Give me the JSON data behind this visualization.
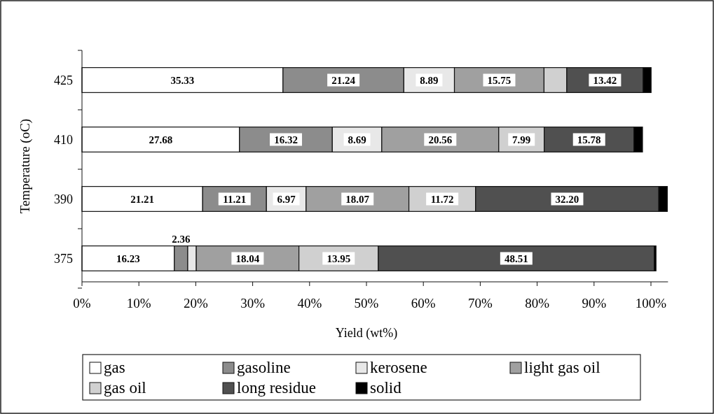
{
  "chart_data": {
    "type": "bar",
    "orientation": "horizontal",
    "stacked": true,
    "xlabel": "Yield (wt%)",
    "ylabel": "Temperature (oC)",
    "categories": [
      "425",
      "410",
      "390",
      "375"
    ],
    "series": [
      {
        "name": "gas",
        "color": "#ffffff",
        "values": [
          35.33,
          27.68,
          21.21,
          16.23
        ],
        "value_labels": [
          "35.33",
          "27.68",
          "21.21",
          "16.23"
        ]
      },
      {
        "name": "gasoline",
        "color": "#8c8c8c",
        "values": [
          21.24,
          16.32,
          11.21,
          2.36
        ],
        "value_labels": [
          "21.24",
          "16.32",
          "11.21",
          "2.36"
        ]
      },
      {
        "name": "kerosene",
        "color": "#e8e8e8",
        "values": [
          8.89,
          8.69,
          6.97,
          1.5
        ],
        "value_labels": [
          "8.89",
          "8.69",
          "6.97",
          null
        ]
      },
      {
        "name": "light gas oil",
        "color": "#a0a0a0",
        "values": [
          15.75,
          20.56,
          18.07,
          18.04
        ],
        "value_labels": [
          "15.75",
          "20.56",
          "18.07",
          "18.04"
        ]
      },
      {
        "name": "gas oil",
        "color": "#d0d0d0",
        "values": [
          4.0,
          7.99,
          11.72,
          13.95
        ],
        "value_labels": [
          null,
          "7.99",
          "11.72",
          "13.95"
        ]
      },
      {
        "name": "long residue",
        "color": "#505050",
        "values": [
          13.42,
          15.78,
          32.2,
          48.51
        ],
        "value_labels": [
          "13.42",
          "15.78",
          "32.20",
          "48.51"
        ]
      },
      {
        "name": "solid",
        "color": "#000000",
        "values": [
          1.4,
          1.5,
          1.5,
          0.3
        ],
        "value_labels": [
          null,
          null,
          null,
          null
        ]
      }
    ],
    "xlim": [
      0,
      103
    ],
    "xticks": [
      {
        "value": 0,
        "label": "0%"
      },
      {
        "value": 10,
        "label": "10%"
      },
      {
        "value": 20,
        "label": "20%"
      },
      {
        "value": 30,
        "label": "30%"
      },
      {
        "value": 40,
        "label": "40%"
      },
      {
        "value": 50,
        "label": "50%"
      },
      {
        "value": 60,
        "label": "60%"
      },
      {
        "value": 70,
        "label": "70%"
      },
      {
        "value": 80,
        "label": "80%"
      },
      {
        "value": 90,
        "label": "90%"
      },
      {
        "value": 100,
        "label": "100%"
      }
    ],
    "legend": "bottom",
    "grid": false
  }
}
